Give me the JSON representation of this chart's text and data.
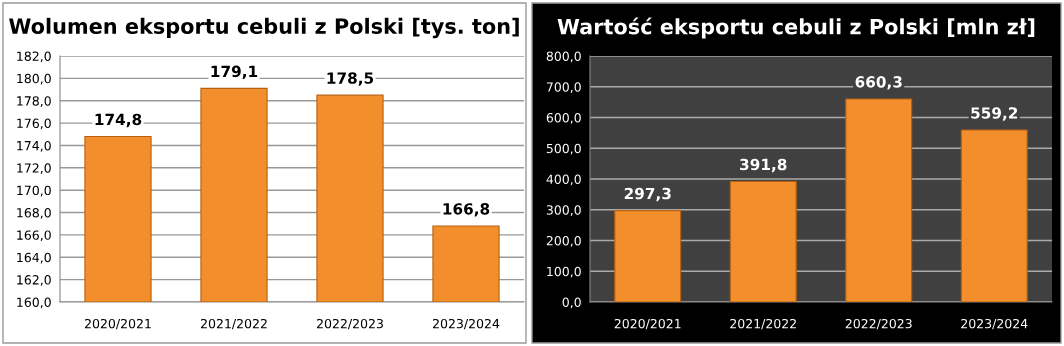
{
  "chart_data": [
    {
      "type": "bar",
      "title": "Wolumen eksportu cebuli z Polski [tys. ton]",
      "categories": [
        "2020/2021",
        "2021/2022",
        "2022/2023",
        "2023/2024"
      ],
      "values": [
        174.8,
        179.1,
        178.5,
        166.8
      ],
      "value_labels": [
        "174,8",
        "179,1",
        "178,5",
        "166,8"
      ],
      "color": "#f28e2b",
      "ylim": [
        160,
        182
      ],
      "yticks": [
        {
          "value": 160,
          "label": "160,0"
        },
        {
          "value": 162,
          "label": "162,0"
        },
        {
          "value": 164,
          "label": "164,0"
        },
        {
          "value": 166,
          "label": "166,0"
        },
        {
          "value": 168,
          "label": "168,0"
        },
        {
          "value": 170,
          "label": "170,0"
        },
        {
          "value": 172,
          "label": "172,0"
        },
        {
          "value": 174,
          "label": "174,0"
        },
        {
          "value": 176,
          "label": "176,0"
        },
        {
          "value": 178,
          "label": "178,0"
        },
        {
          "value": 180,
          "label": "180,0"
        },
        {
          "value": 182,
          "label": "182,0"
        }
      ],
      "grid": "y",
      "legend": false
    },
    {
      "type": "bar",
      "title": "Wartość eksportu cebuli z Polski [mln zł]",
      "categories": [
        "2020/2021",
        "2021/2022",
        "2022/2023",
        "2023/2024"
      ],
      "values": [
        297.3,
        391.8,
        660.3,
        559.2
      ],
      "value_labels": [
        "297,3",
        "391,8",
        "660,3",
        "559,2"
      ],
      "color": "#f28e2b",
      "ylim": [
        0,
        800
      ],
      "yticks": [
        {
          "value": 0,
          "label": "0,0"
        },
        {
          "value": 100,
          "label": "100,0"
        },
        {
          "value": 200,
          "label": "200,0"
        },
        {
          "value": 300,
          "label": "300,0"
        },
        {
          "value": 400,
          "label": "400,0"
        },
        {
          "value": 500,
          "label": "500,0"
        },
        {
          "value": 600,
          "label": "600,0"
        },
        {
          "value": 700,
          "label": "700,0"
        },
        {
          "value": 800,
          "label": "800,0"
        }
      ],
      "grid": "y",
      "legend": false
    }
  ]
}
